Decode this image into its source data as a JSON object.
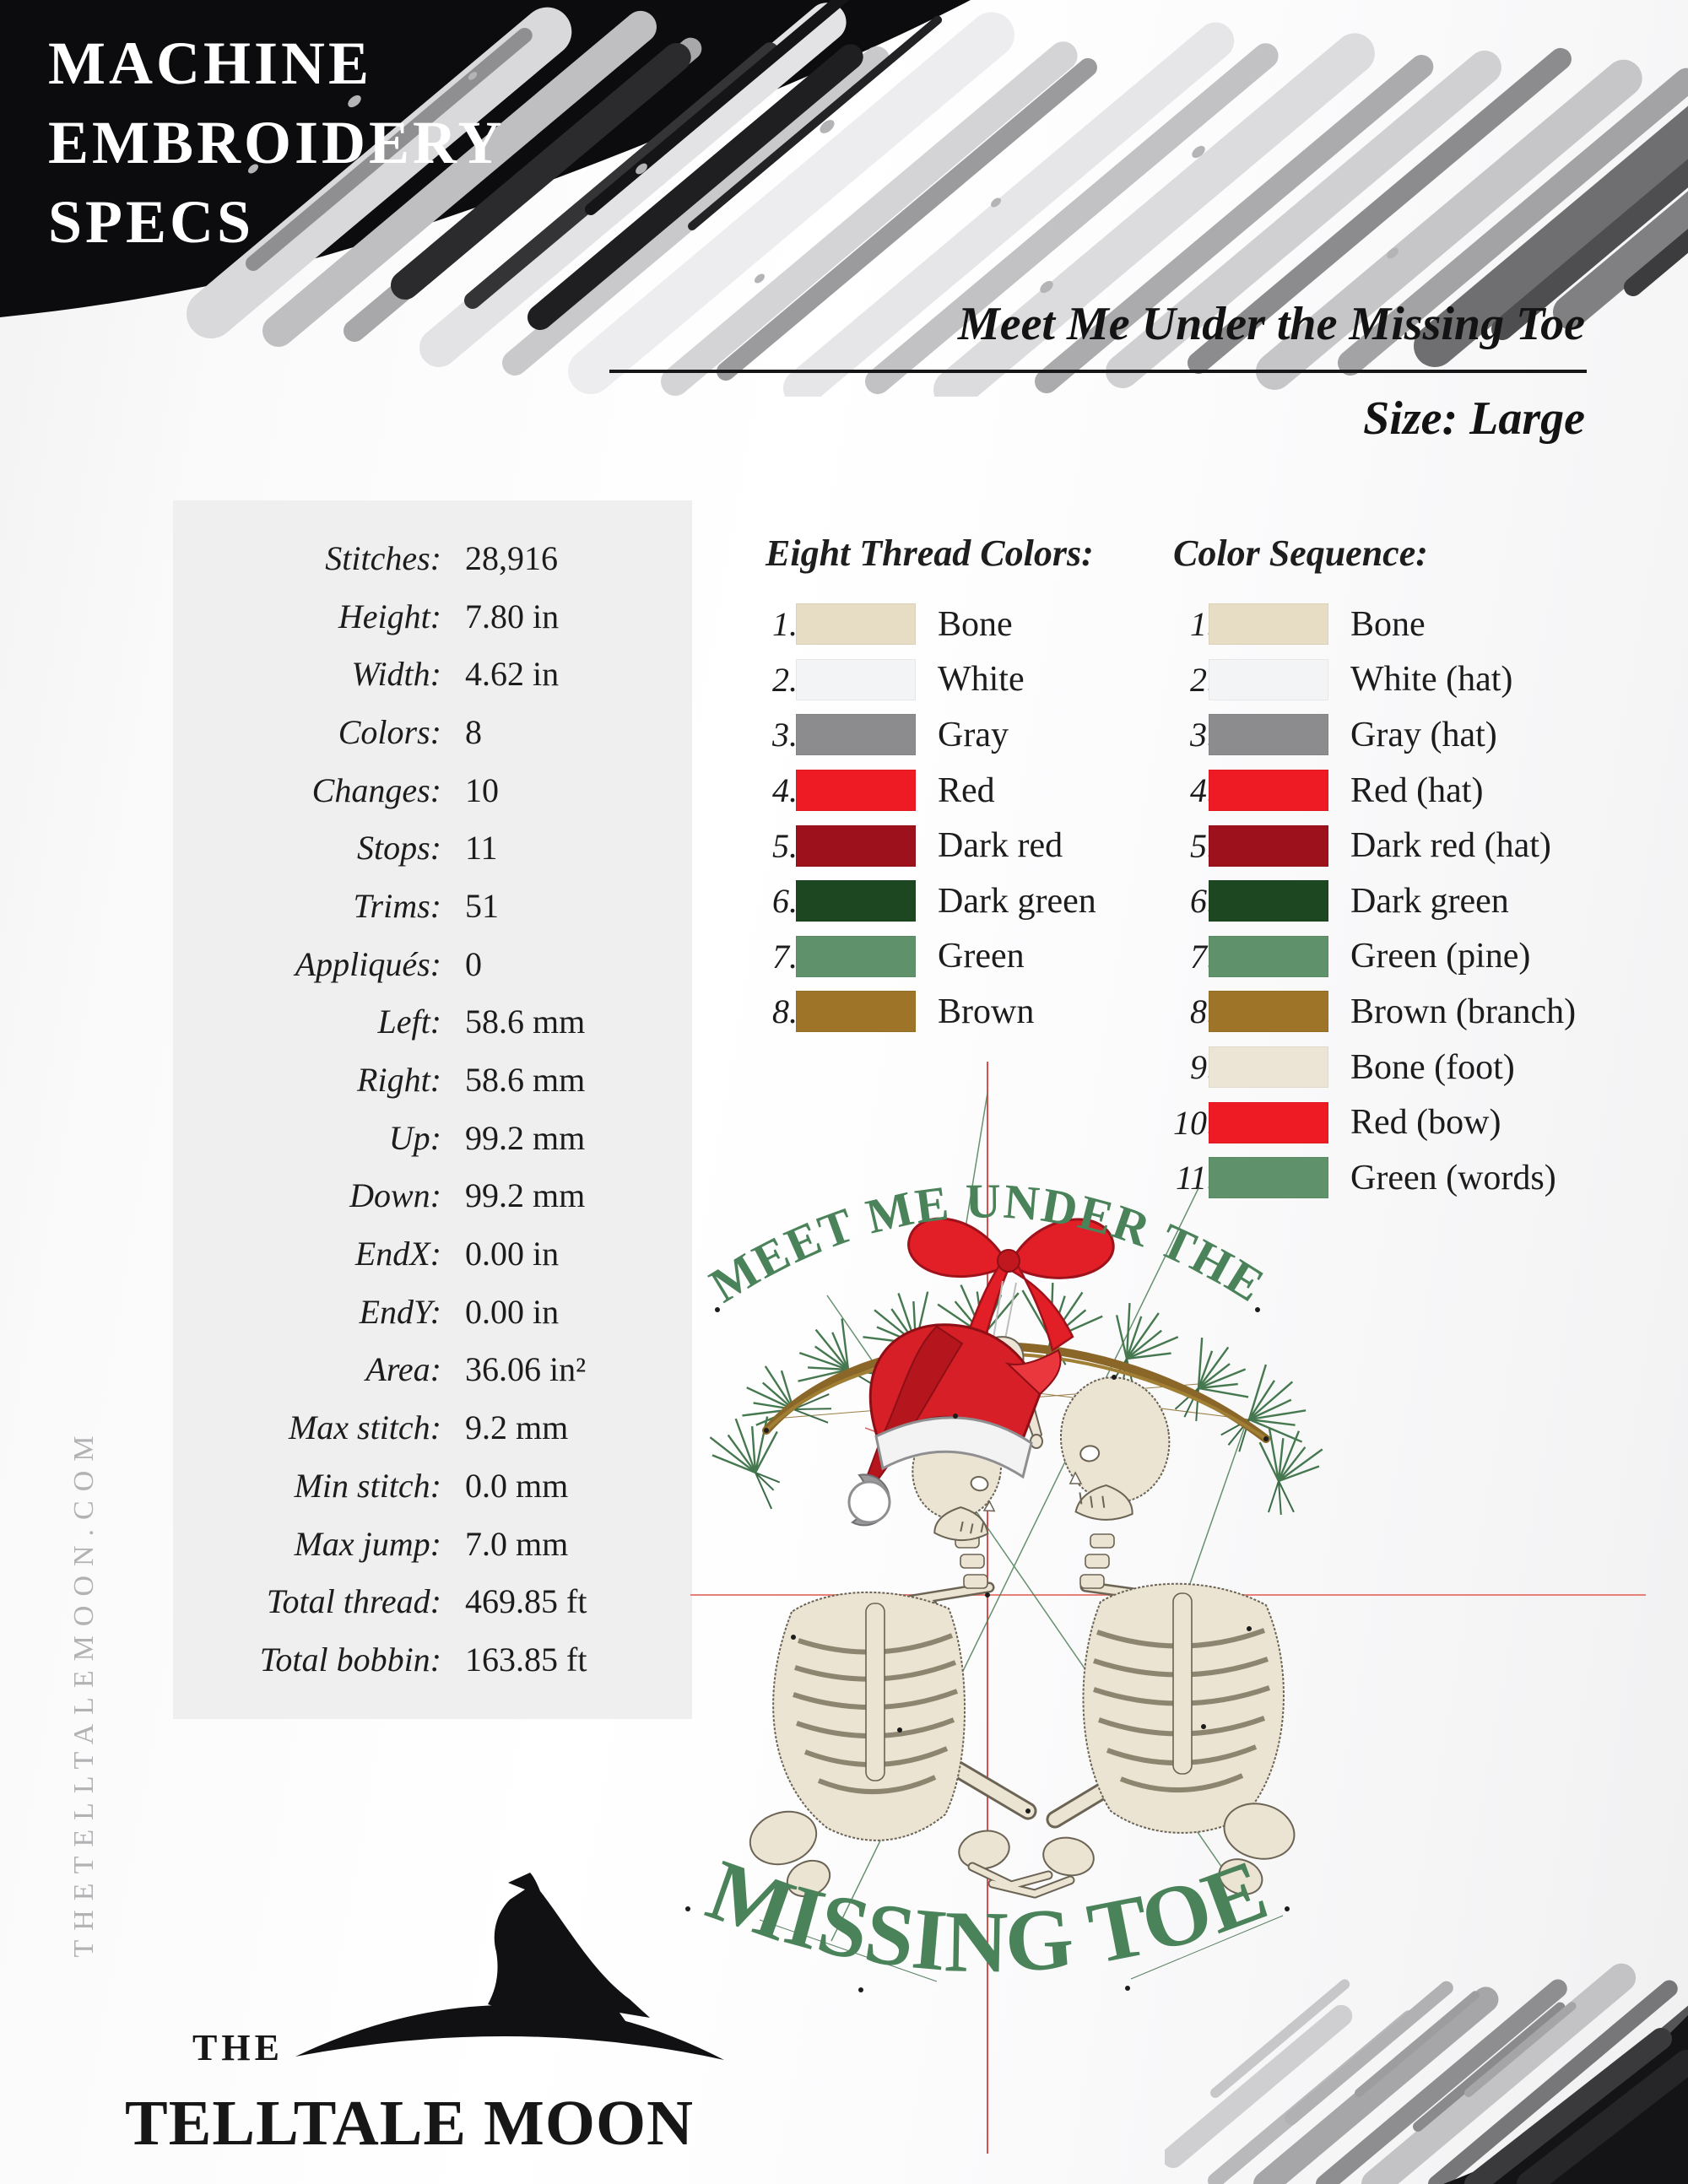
{
  "header": {
    "title_lines": [
      "MACHINE",
      "EMBROIDERY",
      "SPECS"
    ]
  },
  "design": {
    "title": "Meet Me Under the Missing Toe",
    "size_label": "Size: Large"
  },
  "specs": {
    "rows": [
      {
        "label": "Stitches:",
        "value": "28,916"
      },
      {
        "label": "Height:",
        "value": "7.80 in"
      },
      {
        "label": "Width:",
        "value": "4.62 in"
      },
      {
        "label": "Colors:",
        "value": "8"
      },
      {
        "label": "Changes:",
        "value": "10"
      },
      {
        "label": "Stops:",
        "value": "11"
      },
      {
        "label": "Trims:",
        "value": "51"
      },
      {
        "label": "Appliqués:",
        "value": "0"
      },
      {
        "label": "Left:",
        "value": "58.6 mm"
      },
      {
        "label": "Right:",
        "value": "58.6 mm"
      },
      {
        "label": "Up:",
        "value": "99.2 mm"
      },
      {
        "label": "Down:",
        "value": "99.2 mm"
      },
      {
        "label": "EndX:",
        "value": "0.00 in"
      },
      {
        "label": "EndY:",
        "value": "0.00 in"
      },
      {
        "label": "Area:",
        "value": "36.06 in²"
      },
      {
        "label": "Max stitch:",
        "value": "9.2 mm"
      },
      {
        "label": "Min stitch:",
        "value": "0.0 mm"
      },
      {
        "label": "Max jump:",
        "value": "7.0 mm"
      },
      {
        "label": "Total thread:",
        "value": "469.85 ft"
      },
      {
        "label": "Total bobbin:",
        "value": "163.85 ft"
      }
    ]
  },
  "thread_colors": {
    "heading": "Eight Thread Colors:",
    "items": [
      {
        "num": "1.",
        "name": "Bone",
        "hex": "#e7ddc4"
      },
      {
        "num": "2.",
        "name": "White",
        "hex": "#f3f4f6"
      },
      {
        "num": "3.",
        "name": "Gray",
        "hex": "#8c8c8e"
      },
      {
        "num": "4.",
        "name": "Red",
        "hex": "#ee1b24"
      },
      {
        "num": "5.",
        "name": "Dark red",
        "hex": "#9c111b"
      },
      {
        "num": "6.",
        "name": "Dark green",
        "hex": "#1d4721"
      },
      {
        "num": "7.",
        "name": "Green",
        "hex": "#5f926b"
      },
      {
        "num": "8.",
        "name": "Brown",
        "hex": "#9d7428"
      }
    ]
  },
  "color_sequence": {
    "heading": "Color Sequence:",
    "items": [
      {
        "num": "1.",
        "name": "Bone",
        "hex": "#e7ddc4"
      },
      {
        "num": "2.",
        "name": "White (hat)",
        "hex": "#f3f4f6"
      },
      {
        "num": "3.",
        "name": "Gray (hat)",
        "hex": "#8c8c8e"
      },
      {
        "num": "4.",
        "name": "Red (hat)",
        "hex": "#ee1b24"
      },
      {
        "num": "5.",
        "name": "Dark red (hat)",
        "hex": "#9c111b"
      },
      {
        "num": "6.",
        "name": "Dark green",
        "hex": "#1d4721"
      },
      {
        "num": "7.",
        "name": "Green (pine)",
        "hex": "#5f926b"
      },
      {
        "num": "8.",
        "name": "Brown (branch)",
        "hex": "#9d7428"
      },
      {
        "num": "9.",
        "name": "Bone (foot)",
        "hex": "#ece5d6"
      },
      {
        "num": "10.",
        "name": "Red (bow)",
        "hex": "#ee1b24"
      },
      {
        "num": "11.",
        "name": "Green (words)",
        "hex": "#5f926b"
      }
    ]
  },
  "preview": {
    "arch_text": "MEET ME UNDER THE",
    "bottom_text": "MISSING TOE"
  },
  "branding": {
    "vertical_site": "THETELLTALEMOON.COM",
    "logo_the": "THE",
    "logo_name": "TELLTALE MOON"
  },
  "palette": {
    "header_black": "#0c0c0e",
    "stitch_green": "#4a8259",
    "bone_fill": "#ece4d2",
    "crosshair_red": "#d94f4f",
    "hat_red": "#d61f26",
    "branch_brown": "#8a6728"
  }
}
